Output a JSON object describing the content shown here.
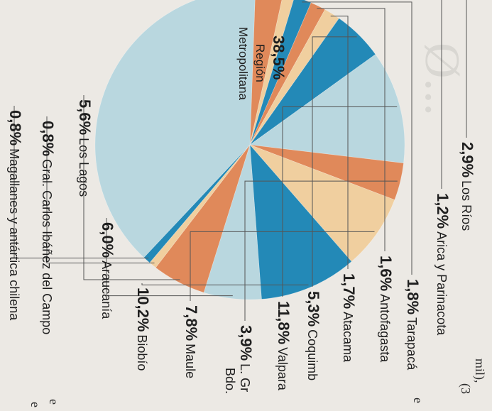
{
  "corner_text": {
    "line1": "mil),",
    "line2": "(3",
    "frag1": "e",
    "frag2": "e",
    "frag3": "e"
  },
  "chart_data": {
    "type": "pie",
    "title": "",
    "slices": [
      {
        "pct": "2,9%",
        "name": "Los Ríos",
        "value": 2.9,
        "color": "#e0895a"
      },
      {
        "pct": "1,2%",
        "name": "Arica y Parinacota",
        "value": 1.2,
        "color": "#f0cf9f"
      },
      {
        "pct": "1,8%",
        "name": "Tarapacá",
        "value": 1.8,
        "color": "#2389b7"
      },
      {
        "pct": "1,6%",
        "name": "Antofagasta",
        "value": 1.6,
        "color": "#e0895a"
      },
      {
        "pct": "1,7%",
        "name": "Atacama",
        "value": 1.7,
        "color": "#f0cf9f"
      },
      {
        "pct": "5,3%",
        "name": "Coquimb",
        "value": 5.3,
        "color": "#2389b7"
      },
      {
        "pct": "11,8%",
        "name": "Valpara",
        "value": 11.8,
        "color": "#b9d7df"
      },
      {
        "pct": "3,9%",
        "name": "L. Gr",
        "name2": "Bdo.",
        "value": 3.9,
        "color": "#e0895a"
      },
      {
        "pct": "7,8%",
        "name": "Maule",
        "value": 7.8,
        "color": "#f0cf9f"
      },
      {
        "pct": "10,2%",
        "name": "Biobío",
        "value": 10.2,
        "color": "#2389b7"
      },
      {
        "pct": "6,0%",
        "name": "Araucanía",
        "value": 6.0,
        "color": "#b9d7df"
      },
      {
        "pct": "5,6%",
        "name": "Los Lagos",
        "value": 5.6,
        "color": "#e0895a"
      },
      {
        "pct": "0,8%",
        "name": "Gral. Carlos Ibáñez del Campo",
        "value": 0.8,
        "color": "#f0cf9f"
      },
      {
        "pct": "0,8%",
        "name": "Magallanes y antártica chilena",
        "value": 0.8,
        "color": "#2389b7"
      },
      {
        "pct": "38,5%",
        "name": "Región",
        "name2": "Metropolitana",
        "value": 38.5,
        "color": "#b9d7df"
      }
    ]
  }
}
